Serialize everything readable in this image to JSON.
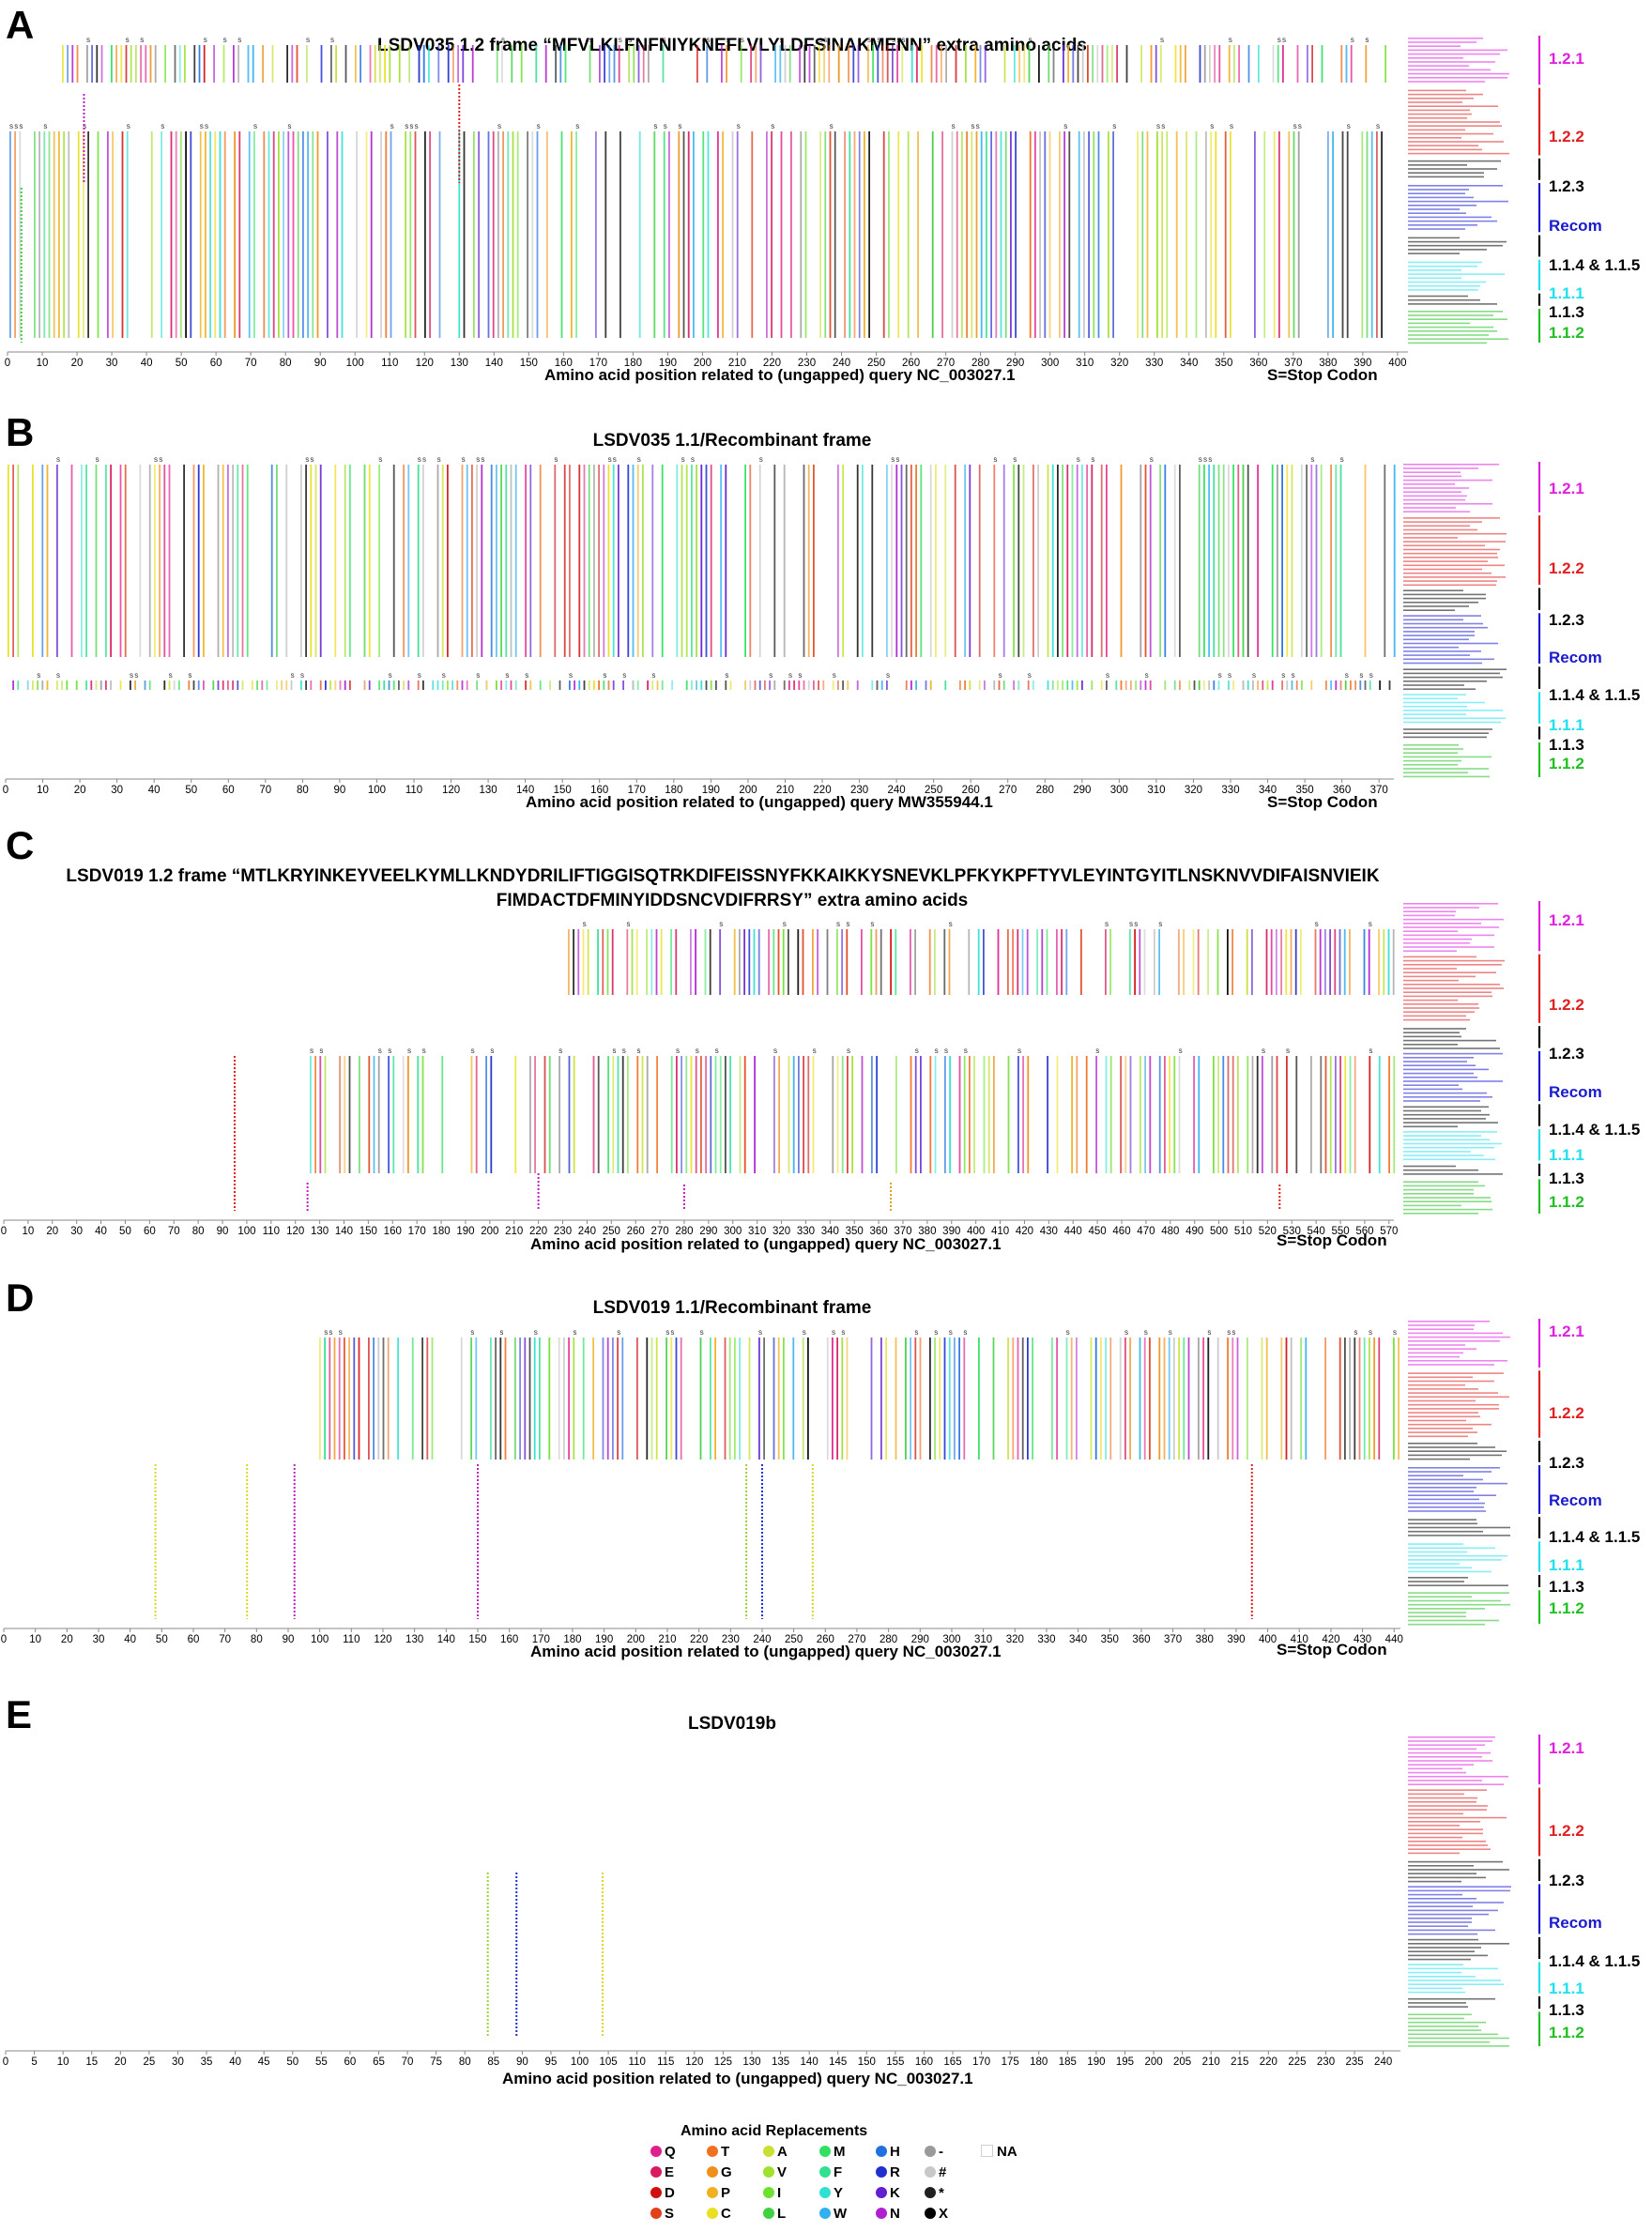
{
  "panels": [
    {
      "letter": "A",
      "title": "LSDV035 1.2 frame “MFVLKLFNFNIYKNEFLVLYLDFSINAKMENN” extra amino acids",
      "x_label": "Amino acid position related to (ungapped) query NC_003027.1",
      "stop_note": "S=Stop Codon",
      "tick_labels": [
        "0",
        "10",
        "20",
        "30",
        "40",
        "50",
        "60",
        "70",
        "80",
        "90",
        "100",
        "110",
        "120",
        "130",
        "140",
        "150",
        "160",
        "170",
        "180",
        "190",
        "200",
        "210",
        "220",
        "230",
        "240",
        "250",
        "260",
        "270",
        "280",
        "290",
        "300",
        "310",
        "320",
        "330",
        "340",
        "350",
        "360",
        "370",
        "380",
        "390",
        "400"
      ],
      "x_range": [
        0,
        403
      ],
      "groups": [
        {
          "label": "1.2.1",
          "color": "#e020e0"
        },
        {
          "label": "1.2.2",
          "color": "#e02020"
        },
        {
          "label": "1.2.3",
          "color": "#000000"
        },
        {
          "label": "Recom",
          "color": "#1a1ad0"
        },
        {
          "label": "1.1.4 & 1.1.5",
          "color": "#000000"
        },
        {
          "label": "1.1.1",
          "color": "#20e0f0"
        },
        {
          "label": "1.1.3",
          "color": "#000000"
        },
        {
          "label": "1.1.2",
          "color": "#20c020"
        }
      ]
    },
    {
      "letter": "B",
      "title": "LSDV035 1.1/Recombinant frame",
      "x_label": "Amino acid position related to (ungapped) query MW355944.1",
      "stop_note": "S=Stop Codon",
      "tick_labels": [
        "0",
        "10",
        "20",
        "30",
        "40",
        "50",
        "60",
        "70",
        "80",
        "90",
        "100",
        "110",
        "120",
        "130",
        "140",
        "150",
        "160",
        "170",
        "180",
        "190",
        "200",
        "210",
        "220",
        "230",
        "240",
        "250",
        "260",
        "270",
        "280",
        "290",
        "300",
        "310",
        "320",
        "330",
        "340",
        "350",
        "360",
        "370"
      ],
      "x_range": [
        0,
        374
      ],
      "groups": [
        {
          "label": "1.2.1",
          "color": "#e020e0"
        },
        {
          "label": "1.2.2",
          "color": "#e02020"
        },
        {
          "label": "1.2.3",
          "color": "#000000"
        },
        {
          "label": "Recom",
          "color": "#1a1ad0"
        },
        {
          "label": "1.1.4 & 1.1.5",
          "color": "#000000"
        },
        {
          "label": "1.1.1",
          "color": "#20e0f0"
        },
        {
          "label": "1.1.3",
          "color": "#000000"
        },
        {
          "label": "1.1.2",
          "color": "#20c020"
        }
      ]
    },
    {
      "letter": "C",
      "title": "LSDV019 1.2 frame “MTLKRYINKEYVEELKYMLLKNDYDRILIFTIGGISQTRKDIFEISSNYFKKAIKKYSNEVKLPFKYKPFTYVLEYINTGYITLNSKNVVDIFAISNVIEIK",
      "title_line2": "FIMDACTDFMINYIDDSNCVDIFRRSY”  extra amino acids",
      "x_label": "Amino acid position related to (ungapped) query NC_003027.1",
      "stop_note": "S=Stop Codon",
      "tick_labels": [
        "0",
        "10",
        "20",
        "30",
        "40",
        "50",
        "60",
        "70",
        "80",
        "90",
        "100",
        "110",
        "120",
        "130",
        "140",
        "150",
        "160",
        "170",
        "180",
        "190",
        "200",
        "210",
        "220",
        "230",
        "240",
        "250",
        "260",
        "270",
        "280",
        "290",
        "300",
        "310",
        "320",
        "330",
        "340",
        "350",
        "360",
        "370",
        "380",
        "390",
        "400",
        "410",
        "420",
        "430",
        "440",
        "450",
        "460",
        "470",
        "480",
        "490",
        "500",
        "510",
        "520",
        "530",
        "540",
        "550",
        "560",
        "570"
      ],
      "x_range": [
        0,
        572
      ],
      "groups": [
        {
          "label": "1.2.1",
          "color": "#e020e0"
        },
        {
          "label": "1.2.2",
          "color": "#e02020"
        },
        {
          "label": "1.2.3",
          "color": "#000000"
        },
        {
          "label": "Recom",
          "color": "#1a1ad0"
        },
        {
          "label": "1.1.4 & 1.1.5",
          "color": "#000000"
        },
        {
          "label": "1.1.1",
          "color": "#20e0f0"
        },
        {
          "label": "1.1.3",
          "color": "#000000"
        },
        {
          "label": "1.1.2",
          "color": "#20c020"
        }
      ]
    },
    {
      "letter": "D",
      "title": "LSDV019  1.1/Recombinant frame",
      "x_label": "Amino acid position related to (ungapped) query NC_003027.1",
      "stop_note": "S=Stop Codon",
      "tick_labels": [
        "0",
        "10",
        "20",
        "30",
        "40",
        "50",
        "60",
        "70",
        "80",
        "90",
        "100",
        "110",
        "120",
        "130",
        "140",
        "150",
        "160",
        "170",
        "180",
        "190",
        "200",
        "210",
        "220",
        "230",
        "240",
        "250",
        "260",
        "270",
        "280",
        "290",
        "300",
        "310",
        "320",
        "330",
        "340",
        "350",
        "360",
        "370",
        "380",
        "390",
        "400",
        "410",
        "420",
        "430",
        "440"
      ],
      "x_range": [
        0,
        442
      ],
      "groups": [
        {
          "label": "1.2.1",
          "color": "#e020e0"
        },
        {
          "label": "1.2.2",
          "color": "#e02020"
        },
        {
          "label": "1.2.3",
          "color": "#000000"
        },
        {
          "label": "Recom",
          "color": "#1a1ad0"
        },
        {
          "label": "1.1.4 & 1.1.5",
          "color": "#000000"
        },
        {
          "label": "1.1.1",
          "color": "#20e0f0"
        },
        {
          "label": "1.1.3",
          "color": "#000000"
        },
        {
          "label": "1.1.2",
          "color": "#20c020"
        }
      ]
    },
    {
      "letter": "E",
      "title": "LSDV019b",
      "x_label": "Amino acid position related to (ungapped) query NC_003027.1",
      "stop_note": "",
      "tick_labels": [
        "0",
        "5",
        "10",
        "15",
        "20",
        "25",
        "30",
        "35",
        "40",
        "45",
        "50",
        "55",
        "60",
        "65",
        "70",
        "75",
        "80",
        "85",
        "90",
        "95",
        "100",
        "105",
        "110",
        "115",
        "120",
        "125",
        "130",
        "135",
        "140",
        "145",
        "150",
        "155",
        "160",
        "165",
        "170",
        "175",
        "180",
        "185",
        "190",
        "195",
        "200",
        "205",
        "210",
        "215",
        "220",
        "225",
        "230",
        "235",
        "240"
      ],
      "x_range": [
        0,
        243
      ],
      "groups": [
        {
          "label": "1.2.1",
          "color": "#e020e0"
        },
        {
          "label": "1.2.2",
          "color": "#e02020"
        },
        {
          "label": "1.2.3",
          "color": "#000000"
        },
        {
          "label": "Recom",
          "color": "#1a1ad0"
        },
        {
          "label": "1.1.4 & 1.1.5",
          "color": "#000000"
        },
        {
          "label": "1.1.1",
          "color": "#20e0f0"
        },
        {
          "label": "1.1.3",
          "color": "#000000"
        },
        {
          "label": "1.1.2",
          "color": "#20c020"
        }
      ]
    }
  ],
  "legend": {
    "title": "Amino acid Replacements",
    "items": [
      {
        "symbol": "Q",
        "color": "#e0208a",
        "kind": "dot"
      },
      {
        "symbol": "E",
        "color": "#d81b60",
        "kind": "dot"
      },
      {
        "symbol": "D",
        "color": "#d01010",
        "kind": "dot"
      },
      {
        "symbol": "S",
        "color": "#e0401a",
        "kind": "dot"
      },
      {
        "symbol": "T",
        "color": "#f07020",
        "kind": "dot"
      },
      {
        "symbol": "G",
        "color": "#f0901a",
        "kind": "dot"
      },
      {
        "symbol": "P",
        "color": "#f0b020",
        "kind": "dot"
      },
      {
        "symbol": "C",
        "color": "#e8e020",
        "kind": "dot"
      },
      {
        "symbol": "A",
        "color": "#c8e030",
        "kind": "dot"
      },
      {
        "symbol": "V",
        "color": "#a0e030",
        "kind": "dot"
      },
      {
        "symbol": "I",
        "color": "#70e030",
        "kind": "dot"
      },
      {
        "symbol": "L",
        "color": "#40d040",
        "kind": "dot"
      },
      {
        "symbol": "M",
        "color": "#30e060",
        "kind": "dot"
      },
      {
        "symbol": "F",
        "color": "#30e090",
        "kind": "dot"
      },
      {
        "symbol": "Y",
        "color": "#30e0d0",
        "kind": "dot"
      },
      {
        "symbol": "W",
        "color": "#30b0f0",
        "kind": "dot"
      },
      {
        "symbol": "H",
        "color": "#2070e0",
        "kind": "dot"
      },
      {
        "symbol": "R",
        "color": "#2030d0",
        "kind": "dot"
      },
      {
        "symbol": "K",
        "color": "#6020d0",
        "kind": "dot"
      },
      {
        "symbol": "N",
        "color": "#b020d0",
        "kind": "dot"
      },
      {
        "symbol": "-",
        "color": "#9a9a9a",
        "kind": "dot"
      },
      {
        "symbol": "#",
        "color": "#c8c8c8",
        "kind": "dot"
      },
      {
        "symbol": "*",
        "color": "#202020",
        "kind": "dot"
      },
      {
        "symbol": "X",
        "color": "#000000",
        "kind": "dot"
      },
      {
        "symbol": "NA",
        "color": "#ffffff",
        "kind": "square"
      }
    ]
  }
}
